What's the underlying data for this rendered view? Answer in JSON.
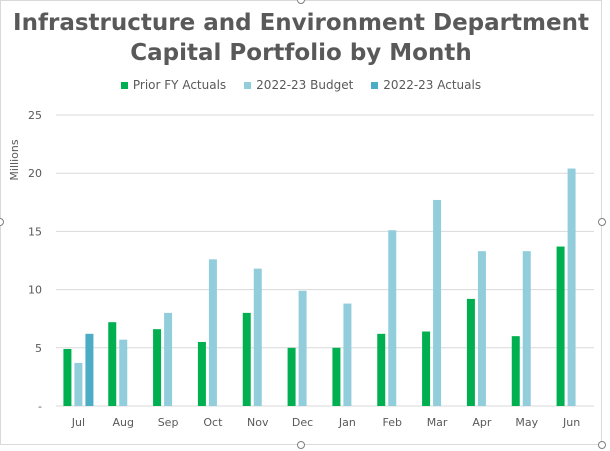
{
  "chart_data": {
    "type": "bar",
    "title_line1": "Infrastructure and Environment Department",
    "title_line2": "Capital Portfolio by Month",
    "ylabel": "Millions",
    "xlabel": "",
    "ylim": [
      0,
      25
    ],
    "yticks": [
      "-",
      "5",
      "10",
      "15",
      "20",
      "25"
    ],
    "ytick_values": [
      0,
      5,
      10,
      15,
      20,
      25
    ],
    "grid": true,
    "legend_position": "top",
    "categories": [
      "Jul",
      "Aug",
      "Sep",
      "Oct",
      "Nov",
      "Dec",
      "Jan",
      "Feb",
      "Mar",
      "Apr",
      "May",
      "Jun"
    ],
    "series": [
      {
        "name": "Prior FY Actuals",
        "color": "#00b050",
        "values": [
          4.9,
          7.2,
          6.6,
          5.5,
          8.0,
          5.0,
          5.0,
          6.2,
          6.4,
          9.2,
          6.0,
          13.7
        ]
      },
      {
        "name": "2022-23 Budget",
        "color": "#92cddc",
        "values": [
          3.7,
          5.7,
          8.0,
          12.6,
          11.8,
          9.9,
          8.8,
          15.1,
          17.7,
          13.3,
          13.3,
          20.4
        ]
      },
      {
        "name": "2022-23 Actuals",
        "color": "#4bacc6",
        "values": [
          6.2,
          null,
          null,
          null,
          null,
          null,
          null,
          null,
          null,
          null,
          null,
          null
        ]
      }
    ]
  }
}
